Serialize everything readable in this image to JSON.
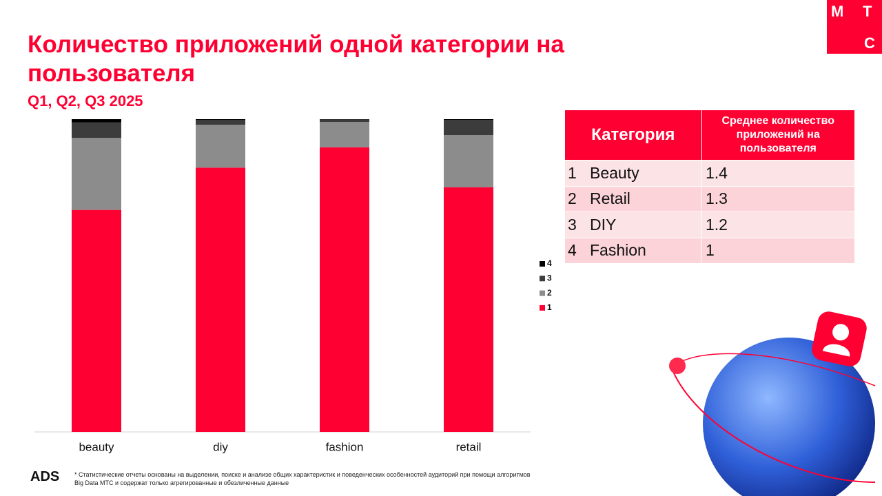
{
  "header": {
    "title": "Количество приложений одной категории на пользователя",
    "subtitle": "Q1, Q2, Q3 2025",
    "logo": [
      "М",
      "Т",
      "С"
    ]
  },
  "chart_data": {
    "type": "stacked_bar",
    "categories": [
      "beauty",
      "diy",
      "fashion",
      "retail"
    ],
    "series": [
      {
        "name": "1",
        "color": "#ff0032",
        "values": [
          71,
          84.5,
          91,
          78.2
        ]
      },
      {
        "name": "2",
        "color": "#8c8c8c",
        "values": [
          23,
          13.7,
          8.1,
          16.7
        ]
      },
      {
        "name": "3",
        "color": "#3c3c3c",
        "values": [
          5,
          1.5,
          0.8,
          4.8
        ]
      },
      {
        "name": "4",
        "color": "#000000",
        "values": [
          1,
          0.3,
          0.1,
          0.3
        ]
      }
    ],
    "ylim": [
      0,
      100
    ],
    "grid": false,
    "legend": "right"
  },
  "table": {
    "header": [
      "Категория",
      "Среднее количество приложений на пользователя"
    ],
    "rows": [
      [
        "1",
        "Beauty",
        "1.4"
      ],
      [
        "2",
        "Retail",
        "1.3"
      ],
      [
        "3",
        "DIY",
        "1.2"
      ],
      [
        "4",
        "Fashion",
        "1"
      ]
    ]
  },
  "footer": {
    "brand": "ADS",
    "note": "* Статистические отчеты основаны на выделении, поиске и анализе общих характеристик и поведенческих особенностей аудиторий при помощи алгоритмов Big Data МТС и содержат только агрегированные и обезличенные данные"
  }
}
